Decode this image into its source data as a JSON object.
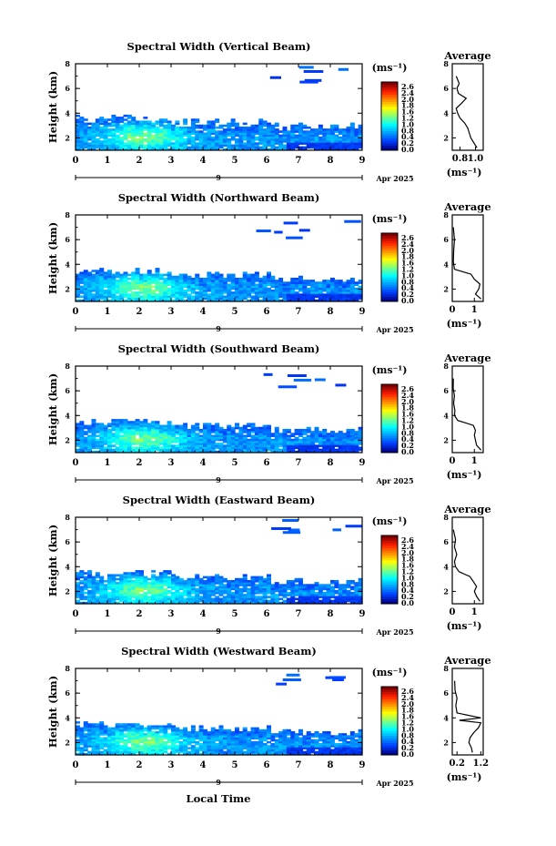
{
  "chart_data": [
    {
      "type": "heatmap",
      "title": "Spectral Width (Vertical Beam)",
      "ylabel": "Height (km)",
      "x_ticks": [
        "0",
        "1",
        "2",
        "3",
        "4",
        "5",
        "6",
        "7",
        "8",
        "9"
      ],
      "y_ticks": [
        "2",
        "4",
        "6",
        "8"
      ],
      "xlim": [
        0,
        9
      ],
      "ylim": [
        1,
        8
      ],
      "date_day": "9",
      "date_label": "Apr 2025",
      "colorbar": {
        "unit": "(ms⁻¹)",
        "labels": [
          "2.6",
          "2.4",
          "2.0",
          "1.8",
          "1.6",
          "1.2",
          "1.0",
          "0.8",
          "0.4",
          "0.2",
          "0.0"
        ],
        "range": [
          0,
          2.8
        ]
      },
      "data_top_km": 3.4,
      "average": {
        "title": "Average",
        "xlabel": "(ms⁻¹)",
        "x_ticks": [
          "0.8",
          "1.0"
        ],
        "xlim": [
          0.7,
          1.1
        ],
        "heights": [
          1.2,
          1.6,
          2.0,
          2.4,
          2.8,
          3.2,
          3.6,
          4.0,
          4.4,
          4.8,
          5.2,
          5.6,
          6.0,
          6.4,
          7.0
        ],
        "values": [
          1.02,
          0.98,
          0.94,
          0.92,
          0.9,
          0.86,
          0.8,
          0.77,
          0.75,
          0.82,
          0.88,
          0.78,
          0.76,
          0.79,
          0.75
        ]
      }
    },
    {
      "type": "heatmap",
      "title": "Spectral Width (Northward Beam)",
      "ylabel": "Height (km)",
      "x_ticks": [
        "0",
        "1",
        "2",
        "3",
        "4",
        "5",
        "6",
        "7",
        "8",
        "9"
      ],
      "y_ticks": [
        "2",
        "4",
        "6",
        "8"
      ],
      "xlim": [
        0,
        9
      ],
      "ylim": [
        1,
        8
      ],
      "date_day": "9",
      "date_label": "Apr 2025",
      "colorbar": {
        "unit": "(ms⁻¹)",
        "labels": [
          "2.6",
          "2.4",
          "2.0",
          "1.8",
          "1.6",
          "1.2",
          "1.0",
          "0.8",
          "0.4",
          "0.2",
          "0.0"
        ],
        "range": [
          0,
          2.8
        ]
      },
      "data_top_km": 3.3,
      "average": {
        "title": "Average",
        "xlabel": "(ms⁻¹)",
        "x_ticks": [
          "0",
          "1"
        ],
        "xlim": [
          0,
          1.4
        ],
        "heights": [
          1.2,
          1.6,
          2.0,
          2.4,
          2.8,
          3.2,
          3.6,
          4.2,
          5.0,
          6.0,
          7.0
        ],
        "values": [
          1.3,
          1.05,
          1.2,
          1.25,
          1.0,
          0.85,
          0.1,
          0.05,
          0.06,
          0.1,
          0.05
        ]
      }
    },
    {
      "type": "heatmap",
      "title": "Spectral Width (Southward Beam)",
      "ylabel": "Height (km)",
      "x_ticks": [
        "0",
        "1",
        "2",
        "3",
        "4",
        "5",
        "6",
        "7",
        "8",
        "9"
      ],
      "y_ticks": [
        "2",
        "4",
        "6",
        "8"
      ],
      "xlim": [
        0,
        9
      ],
      "ylim": [
        1,
        8
      ],
      "date_day": "9",
      "date_label": "Apr 2025",
      "colorbar": {
        "unit": "(ms⁻¹)",
        "labels": [
          "2.6",
          "2.4",
          "2.0",
          "1.8",
          "1.6",
          "1.2",
          "1.0",
          "0.8",
          "0.4",
          "0.2",
          "0.0"
        ],
        "range": [
          0,
          2.8
        ]
      },
      "data_top_km": 3.3,
      "average": {
        "title": "Average",
        "xlabel": "(ms⁻¹)",
        "x_ticks": [
          "0",
          "1"
        ],
        "xlim": [
          0,
          1.4
        ],
        "heights": [
          1.2,
          1.6,
          2.0,
          2.4,
          2.8,
          3.2,
          3.6,
          4.0,
          4.4,
          5.0,
          5.6,
          6.2,
          7.0
        ],
        "values": [
          1.3,
          1.1,
          1.05,
          1.0,
          1.05,
          0.95,
          0.25,
          0.1,
          0.12,
          0.06,
          0.1,
          0.04,
          0.05
        ]
      }
    },
    {
      "type": "heatmap",
      "title": "Spectral Width (Eastward Beam)",
      "ylabel": "Height (km)",
      "x_ticks": [
        "0",
        "1",
        "2",
        "3",
        "4",
        "5",
        "6",
        "7",
        "8",
        "9"
      ],
      "y_ticks": [
        "2",
        "4",
        "6",
        "8"
      ],
      "xlim": [
        0,
        9
      ],
      "ylim": [
        1,
        8
      ],
      "date_day": "9",
      "date_label": "Apr 2025",
      "colorbar": {
        "unit": "(ms⁻¹)",
        "labels": [
          "2.6",
          "2.4",
          "2.0",
          "1.8",
          "1.6",
          "1.2",
          "1.0",
          "0.8",
          "0.4",
          "0.2",
          "0.0"
        ],
        "range": [
          0,
          2.8
        ]
      },
      "data_top_km": 3.3,
      "average": {
        "title": "Average",
        "xlabel": "(ms⁻¹)",
        "x_ticks": [
          "0",
          "1"
        ],
        "xlim": [
          0,
          1.4
        ],
        "heights": [
          1.2,
          1.6,
          2.0,
          2.4,
          2.8,
          3.2,
          3.6,
          4.0,
          4.4,
          5.0,
          5.6,
          6.2,
          7.0
        ],
        "values": [
          1.25,
          1.1,
          1.0,
          1.1,
          0.95,
          0.8,
          0.3,
          0.15,
          0.1,
          0.2,
          0.1,
          0.15,
          0.05
        ]
      }
    },
    {
      "type": "heatmap",
      "title": "Spectral Width (Westward Beam)",
      "ylabel": "Height (km)",
      "x_ticks": [
        "0",
        "1",
        "2",
        "3",
        "4",
        "5",
        "6",
        "7",
        "8",
        "9"
      ],
      "y_ticks": [
        "2",
        "4",
        "6",
        "8"
      ],
      "xlim": [
        0,
        9
      ],
      "ylim": [
        1,
        8
      ],
      "date_day": "9",
      "date_label": "Apr 2025",
      "colorbar": {
        "unit": "(ms⁻¹)",
        "labels": [
          "2.6",
          "2.4",
          "2.0",
          "1.8",
          "1.6",
          "1.2",
          "1.0",
          "0.8",
          "0.4",
          "0.2",
          "0.0"
        ],
        "range": [
          0,
          2.8
        ]
      },
      "data_top_km": 3.3,
      "average": {
        "title": "Average",
        "xlabel": "(ms⁻¹)",
        "x_ticks": [
          "0.2",
          "1.2"
        ],
        "xlim": [
          0,
          1.3
        ],
        "heights": [
          1.2,
          1.6,
          2.0,
          2.4,
          2.8,
          3.2,
          3.6,
          3.8,
          4.0,
          4.4,
          5.0,
          5.6,
          6.2,
          7.0
        ],
        "values": [
          0.85,
          0.8,
          0.7,
          0.75,
          0.9,
          1.1,
          1.2,
          0.3,
          1.2,
          0.2,
          0.15,
          0.2,
          0.12,
          0.1
        ]
      }
    }
  ],
  "xlabel": "Local Time"
}
